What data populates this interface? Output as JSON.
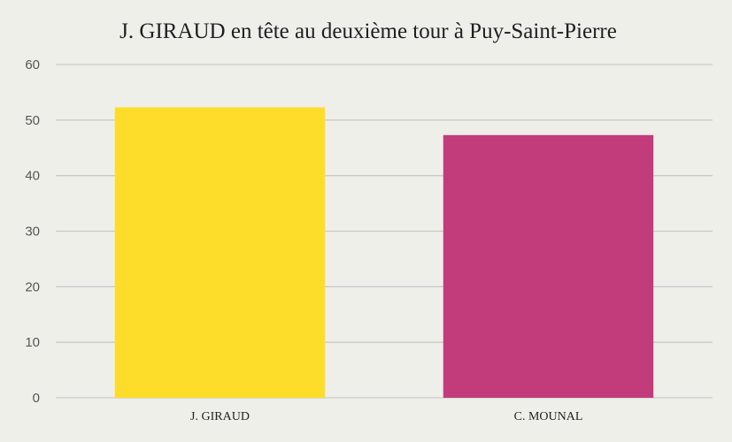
{
  "chart_data": {
    "type": "bar",
    "title": "J. GIRAUD en tête au deuxième tour à Puy-Saint-Pierre",
    "categories": [
      "J. GIRAUD",
      "C. MOUNAL"
    ],
    "values": [
      52.3,
      47.3
    ],
    "colors": [
      "#fddd2a",
      "#c23c7c"
    ],
    "ylim": [
      0,
      60
    ],
    "yticks": [
      0,
      10,
      20,
      30,
      40,
      50,
      60
    ],
    "xlabel": "",
    "ylabel": "",
    "grid": true,
    "legend": "none"
  }
}
